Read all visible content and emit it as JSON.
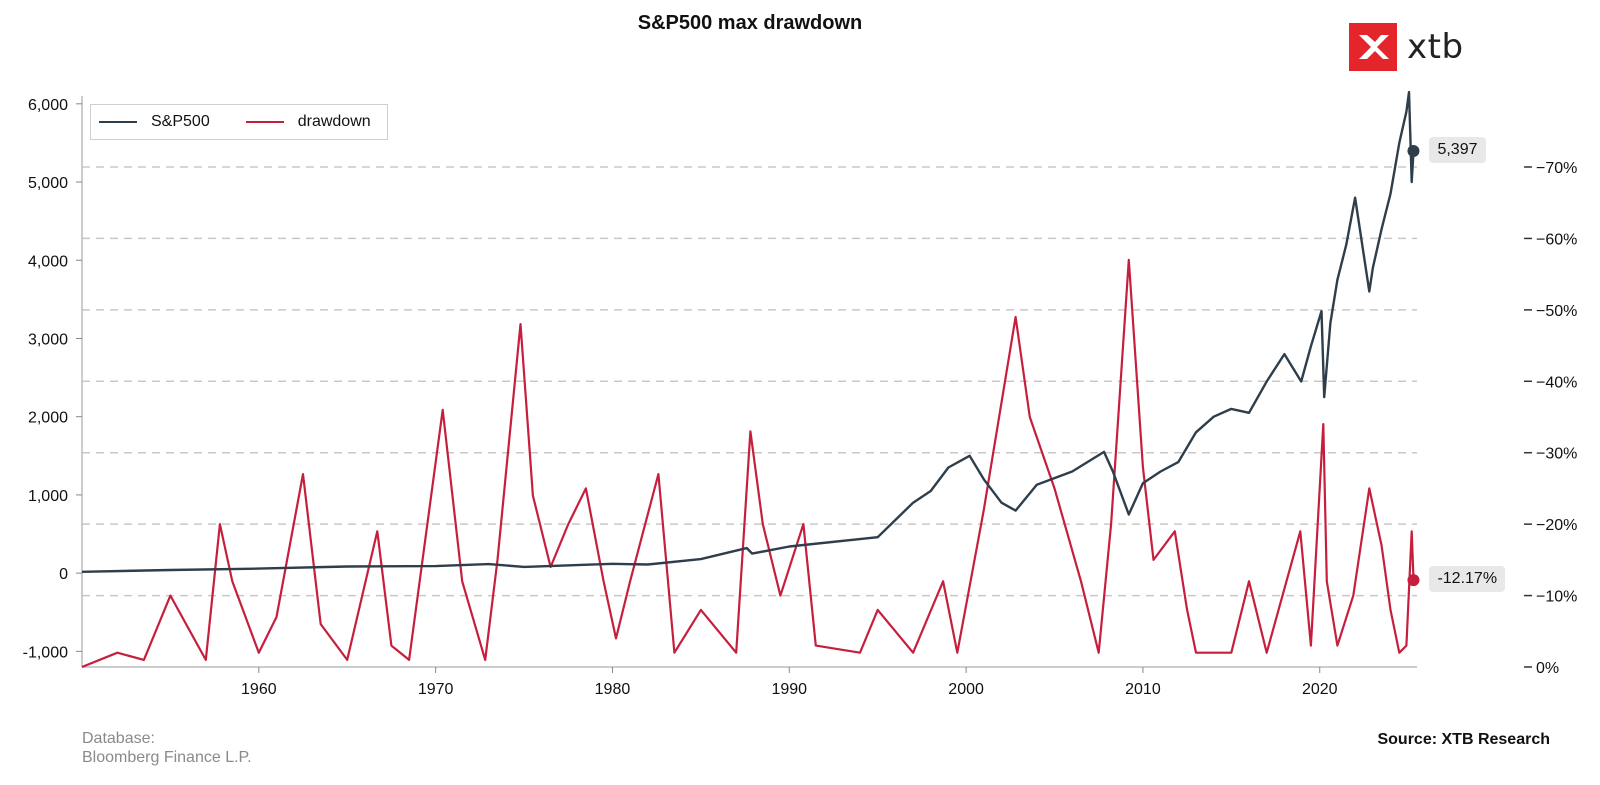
{
  "title": "S&P500 max drawdown",
  "logo": {
    "text": "xtb",
    "icon": "xtb-x-icon",
    "color": "#e5252c"
  },
  "footer": {
    "db_label": "Database:",
    "db_value": "Bloomberg Finance L.P.",
    "source": "Source: XTB Research"
  },
  "colors": {
    "sp500": "#2f3e4b",
    "drawdown": "#c61f3d",
    "grid": "#c8c8c8",
    "badge": "#e8e8e8"
  },
  "chart_data": {
    "type": "line",
    "title": "S&P500 max drawdown",
    "legend": {
      "placement": "top-left",
      "entries": [
        "S&P500",
        "drawdown"
      ]
    },
    "grid": "horizontal dashed (right axis)",
    "x_ticks": [
      "1960",
      "1970",
      "1980",
      "1990",
      "2000",
      "2010",
      "2020"
    ],
    "xlim": [
      1950,
      2025.5
    ],
    "left_axis": {
      "ylim": [
        -1200,
        6100
      ],
      "ticks": [
        -1000,
        0,
        1000,
        2000,
        3000,
        4000,
        5000,
        6000
      ],
      "tick_labels": [
        "-1,000",
        "0",
        "1,000",
        "2,000",
        "3,000",
        "4,000",
        "5,000",
        "6,000"
      ]
    },
    "right_axis": {
      "ylim": [
        0,
        -78
      ],
      "inverted": true,
      "ticks": [
        0,
        -10,
        -20,
        -30,
        -40,
        -50,
        -60,
        -70
      ],
      "tick_labels": [
        "0%",
        "−10%",
        "−20%",
        "−30%",
        "−40%",
        "−50%",
        "−60%",
        "−70%"
      ]
    },
    "series": [
      {
        "name": "S&P500",
        "axis": "left",
        "x": [
          1950,
          1955,
          1960,
          1965,
          1970,
          1973,
          1975,
          1980,
          1982,
          1985,
          1987.6,
          1987.9,
          1990,
          1995,
          1997,
          1998,
          1999,
          2000.2,
          2001,
          2002,
          2002.8,
          2004,
          2006,
          2007.8,
          2008.3,
          2009.2,
          2010,
          2011,
          2012,
          2013,
          2014,
          2015,
          2016,
          2017,
          2018,
          2018.95,
          2019.5,
          2020.1,
          2020.25,
          2020.6,
          2021,
          2021.5,
          2022,
          2022.8,
          2023,
          2023.5,
          2024,
          2024.5,
          2024.9,
          2025.05,
          2025.2,
          2025.3
        ],
        "values": [
          17,
          40,
          58,
          85,
          90,
          115,
          80,
          120,
          110,
          180,
          320,
          250,
          340,
          460,
          900,
          1050,
          1350,
          1500,
          1200,
          900,
          800,
          1130,
          1300,
          1550,
          1300,
          750,
          1150,
          1300,
          1420,
          1800,
          2000,
          2100,
          2050,
          2450,
          2800,
          2450,
          2900,
          3350,
          2250,
          3200,
          3750,
          4200,
          4800,
          3600,
          3900,
          4400,
          4850,
          5500,
          5900,
          6150,
          5000,
          5397
        ]
      },
      {
        "name": "drawdown",
        "axis": "right",
        "x": [
          1950,
          1952,
          1953.5,
          1955,
          1957,
          1957.8,
          1958.5,
          1960,
          1961,
          1962.5,
          1963.5,
          1965,
          1966.7,
          1967.5,
          1968.5,
          1970.4,
          1971.5,
          1972.8,
          1973.5,
          1974.8,
          1975.5,
          1976.5,
          1977.5,
          1978.5,
          1979.5,
          1980.2,
          1981,
          1982.6,
          1983.5,
          1985,
          1987,
          1987.8,
          1988.5,
          1989.5,
          1990.8,
          1991.5,
          1994,
          1995,
          1997,
          1998.7,
          1999.5,
          2001,
          2002.8,
          2003.6,
          2005,
          2006.5,
          2007.5,
          2008.2,
          2009.2,
          2010,
          2010.6,
          2011.8,
          2012.5,
          2013,
          2015,
          2016,
          2017,
          2018.9,
          2019.5,
          2020.2,
          2020.4,
          2021,
          2021.9,
          2022.8,
          2023.5,
          2024,
          2024.5,
          2024.9,
          2025.2,
          2025.3
        ],
        "values": [
          0,
          -2,
          -1,
          -10,
          -1,
          -20,
          -12,
          -2,
          -7,
          -27,
          -6,
          -1,
          -19,
          -3,
          -1,
          -36,
          -12,
          -1,
          -15,
          -48,
          -24,
          -14,
          -20,
          -25,
          -12,
          -4,
          -12,
          -27,
          -2,
          -8,
          -2,
          -33,
          -20,
          -10,
          -20,
          -3,
          -2,
          -8,
          -2,
          -12,
          -2,
          -22,
          -49,
          -35,
          -25,
          -12,
          -2,
          -20,
          -57,
          -28,
          -15,
          -19,
          -8,
          -2,
          -2,
          -12,
          -2,
          -19,
          -3,
          -34,
          -12,
          -3,
          -10,
          -25,
          -17,
          -8,
          -2,
          -3,
          -19,
          -12.17
        ]
      }
    ],
    "annotations": [
      {
        "series": "S&P500",
        "label": "5,397"
      },
      {
        "series": "drawdown",
        "label": "-12.17%"
      }
    ]
  }
}
